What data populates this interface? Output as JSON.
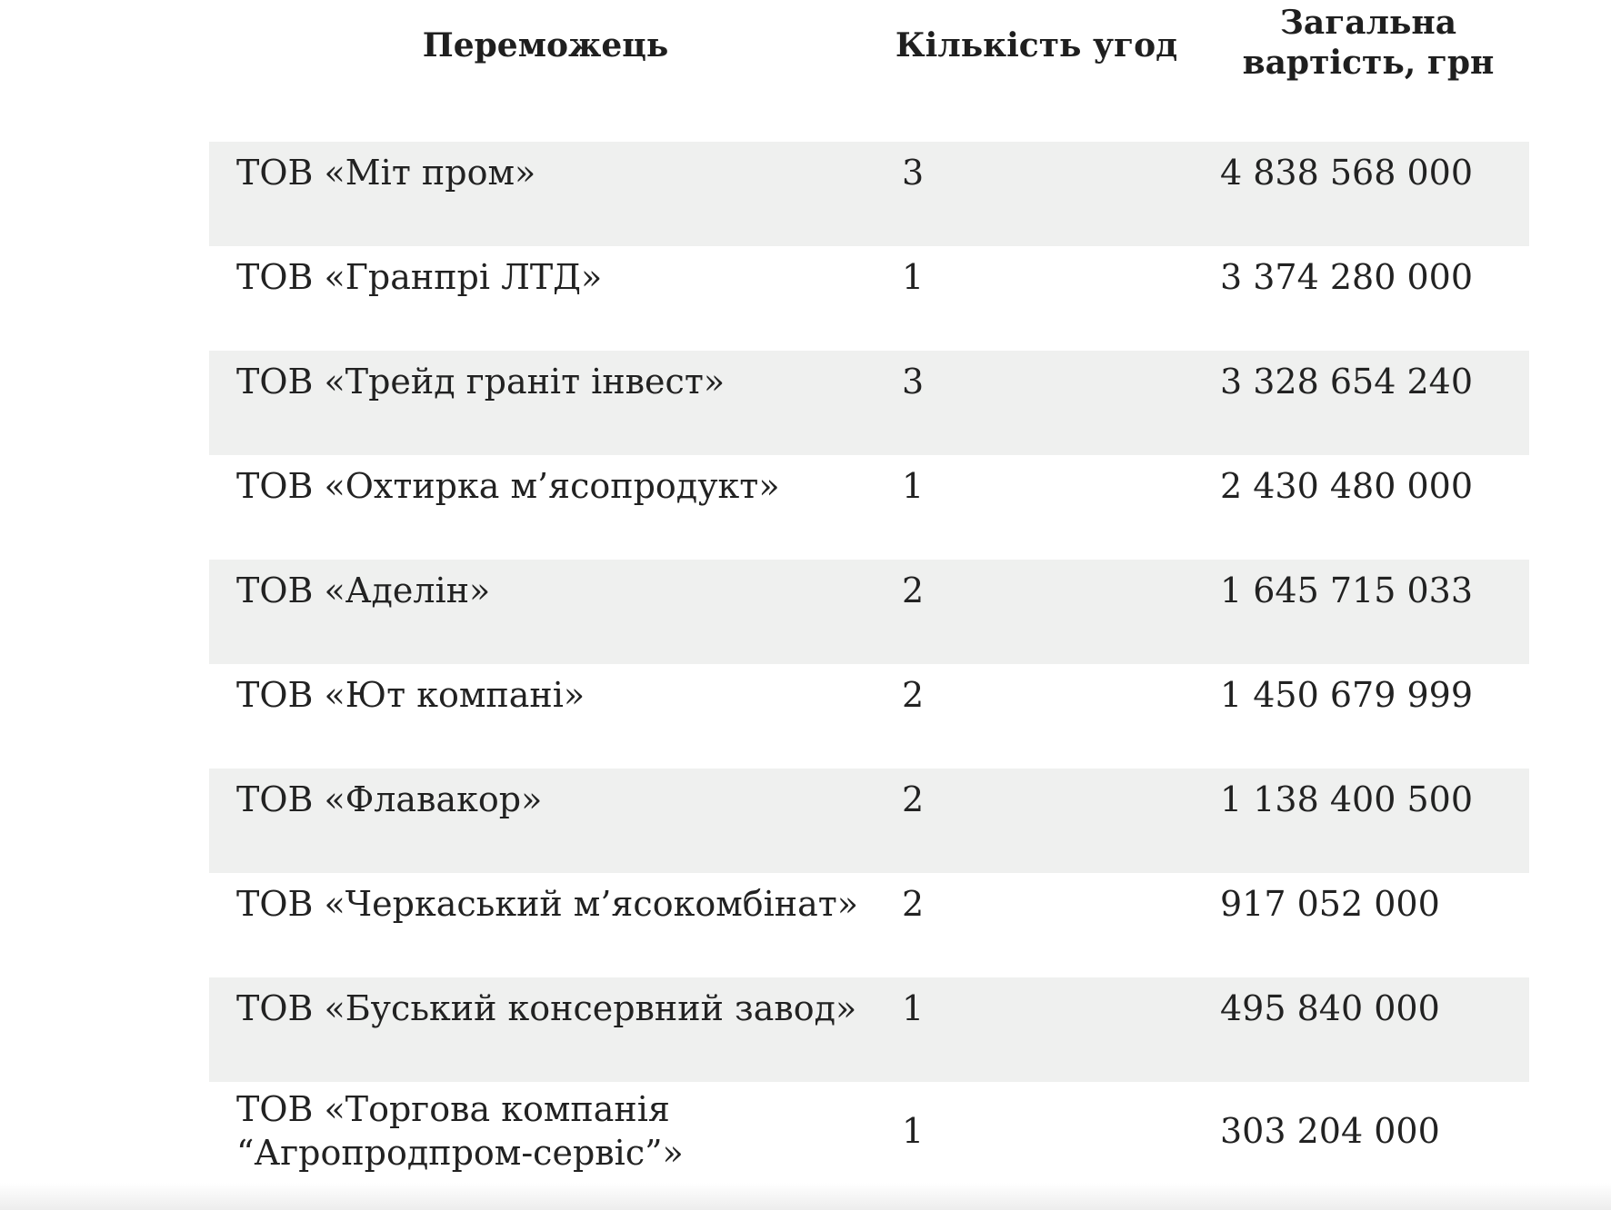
{
  "header": {
    "winner": "Переможець",
    "count": "Кількість угод",
    "total": "Загальна вартість, грн"
  },
  "rows": [
    {
      "name": "ТОВ «Міт пром»",
      "count": "3",
      "total": "4 838 568 000"
    },
    {
      "name": "ТОВ «Гранпрі ЛТД»",
      "count": "1",
      "total": "3 374 280 000"
    },
    {
      "name": "ТОВ «Трейд граніт інвест»",
      "count": "3",
      "total": "3 328 654 240"
    },
    {
      "name": "ТОВ «Охтирка м’ясопродукт»",
      "count": "1",
      "total": "2 430 480 000"
    },
    {
      "name": "ТОВ «Аделін»",
      "count": "2",
      "total": "1 645 715 033"
    },
    {
      "name": "ТОВ «Ют компані»",
      "count": "2",
      "total": "1 450 679 999"
    },
    {
      "name": "ТОВ «Флавакор»",
      "count": "2",
      "total": "1 138 400 500"
    },
    {
      "name": "ТОВ «Черкаський м’ясокомбінат»",
      "count": "2",
      "total": "917 052 000"
    },
    {
      "name": "ТОВ «Буський консервний завод»",
      "count": "1",
      "total": "495 840 000"
    },
    {
      "name": "ТОВ «Торгова компанія “Агропродпром-сервіс”»",
      "count": "1",
      "total": "303 204 000"
    }
  ]
}
